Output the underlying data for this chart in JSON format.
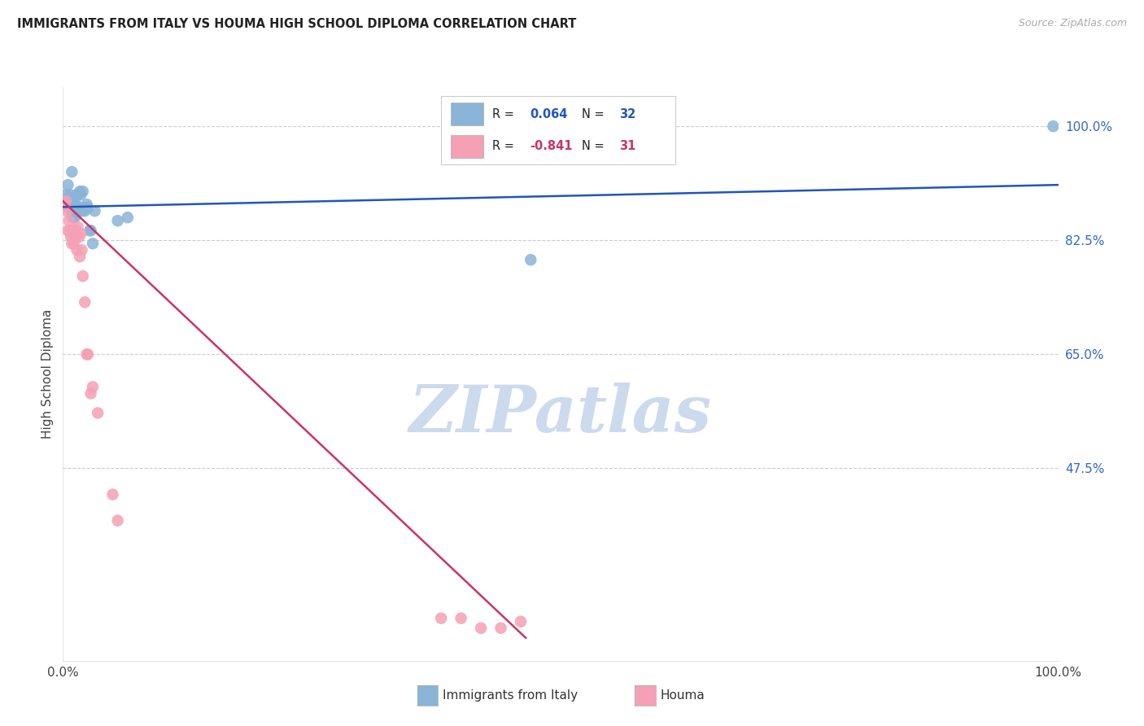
{
  "title": "IMMIGRANTS FROM ITALY VS HOUMA HIGH SCHOOL DIPLOMA CORRELATION CHART",
  "source": "Source: ZipAtlas.com",
  "ylabel": "High School Diploma",
  "blue_color": "#8ab4d8",
  "pink_color": "#f5a0b5",
  "blue_line_color": "#2255bb",
  "pink_line_color": "#cc3366",
  "blue_r": "0.064",
  "blue_n": "32",
  "pink_r": "-0.841",
  "pink_n": "31",
  "ytick_vals": [
    0.475,
    0.65,
    0.825,
    1.0
  ],
  "ytick_labels": [
    "47.5%",
    "65.0%",
    "82.5%",
    "100.0%"
  ],
  "xlim": [
    0.0,
    1.0
  ],
  "ylim": [
    0.18,
    1.06
  ],
  "legend_label_blue": "Immigrants from Italy",
  "legend_label_pink": "Houma",
  "blue_scatter_x": [
    0.003,
    0.004,
    0.005,
    0.006,
    0.007,
    0.008,
    0.009,
    0.009,
    0.01,
    0.011,
    0.012,
    0.013,
    0.014,
    0.015,
    0.015,
    0.016,
    0.017,
    0.018,
    0.019,
    0.02,
    0.021,
    0.022,
    0.024,
    0.025,
    0.027,
    0.028,
    0.03,
    0.032,
    0.055,
    0.065,
    0.47,
    0.995
  ],
  "blue_scatter_y": [
    0.895,
    0.88,
    0.91,
    0.875,
    0.895,
    0.88,
    0.87,
    0.93,
    0.86,
    0.88,
    0.86,
    0.88,
    0.895,
    0.895,
    0.875,
    0.87,
    0.9,
    0.895,
    0.87,
    0.9,
    0.875,
    0.87,
    0.88,
    0.875,
    0.84,
    0.84,
    0.82,
    0.87,
    0.855,
    0.86,
    0.795,
    1.0
  ],
  "pink_scatter_x": [
    0.003,
    0.004,
    0.005,
    0.006,
    0.007,
    0.008,
    0.009,
    0.01,
    0.011,
    0.012,
    0.013,
    0.014,
    0.015,
    0.016,
    0.017,
    0.018,
    0.019,
    0.02,
    0.022,
    0.024,
    0.025,
    0.028,
    0.03,
    0.035,
    0.05,
    0.055,
    0.38,
    0.4,
    0.42,
    0.44,
    0.46
  ],
  "pink_scatter_y": [
    0.885,
    0.87,
    0.84,
    0.855,
    0.84,
    0.83,
    0.82,
    0.835,
    0.82,
    0.83,
    0.84,
    0.81,
    0.845,
    0.83,
    0.8,
    0.835,
    0.81,
    0.77,
    0.73,
    0.65,
    0.65,
    0.59,
    0.6,
    0.56,
    0.435,
    0.395,
    0.245,
    0.245,
    0.23,
    0.23,
    0.24
  ],
  "blue_line_x": [
    0.0,
    1.0
  ],
  "blue_line_y": [
    0.876,
    0.91
  ],
  "pink_line_x": [
    0.0,
    0.465
  ],
  "pink_line_y": [
    0.885,
    0.215
  ]
}
